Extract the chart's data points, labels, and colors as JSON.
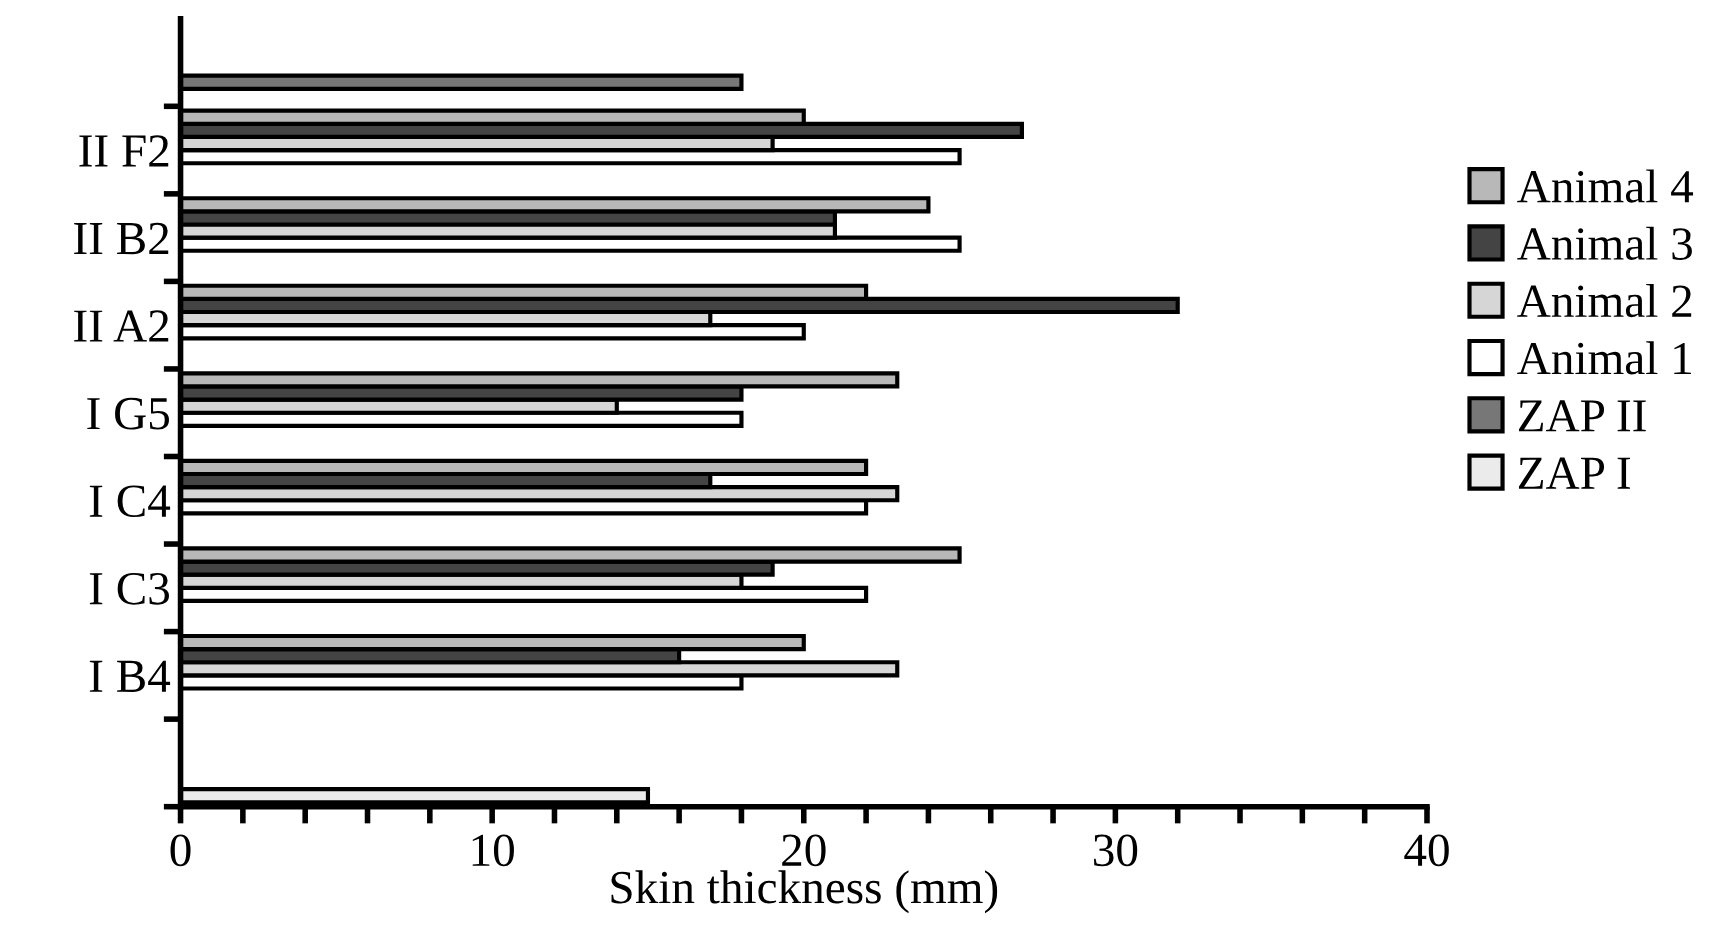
{
  "chart_data": {
    "type": "bar",
    "orientation": "horizontal",
    "xlabel": "Skin thickness (mm)",
    "categories": [
      null,
      "II F2",
      "II B2",
      "II A2",
      "I G5",
      "I C4",
      "I C3",
      "I B4",
      null
    ],
    "series": [
      {
        "name": "ZAP I",
        "color": "#ebebeb",
        "values": [
          null,
          null,
          null,
          null,
          null,
          null,
          null,
          null,
          15
        ]
      },
      {
        "name": "ZAP II",
        "color": "#777777",
        "values": [
          18,
          null,
          null,
          null,
          null,
          null,
          null,
          null,
          null
        ]
      },
      {
        "name": "Animal 1",
        "color": "#ffffff",
        "values": [
          null,
          25,
          25,
          20,
          18,
          22,
          22,
          18,
          null
        ]
      },
      {
        "name": "Animal 2",
        "color": "#d6d6d6",
        "values": [
          null,
          19,
          21,
          17,
          14,
          23,
          18,
          23,
          null
        ]
      },
      {
        "name": "Animal 3",
        "color": "#444444",
        "values": [
          null,
          27,
          21,
          32,
          18,
          17,
          19,
          16,
          null
        ]
      },
      {
        "name": "Animal 4",
        "color": "#b8b8b8",
        "values": [
          null,
          20,
          24,
          22,
          23,
          22,
          25,
          20,
          null
        ]
      }
    ],
    "xlim": [
      0,
      40
    ],
    "xticks": [
      0,
      {
        "value": 2,
        "label": null
      },
      {
        "value": 4,
        "label": null
      },
      {
        "value": 6,
        "label": null
      },
      {
        "value": 8,
        "label": null
      },
      10,
      {
        "value": 12,
        "label": null
      },
      {
        "value": 14,
        "label": null
      },
      {
        "value": 16,
        "label": null
      },
      {
        "value": 18,
        "label": null
      },
      20,
      {
        "value": 22,
        "label": null
      },
      {
        "value": 24,
        "label": null
      },
      {
        "value": 26,
        "label": null
      },
      {
        "value": 28,
        "label": null
      },
      30,
      {
        "value": 32,
        "label": null
      },
      {
        "value": 34,
        "label": null
      },
      {
        "value": 36,
        "label": null
      },
      {
        "value": 38,
        "label": null
      },
      40
    ],
    "legend": "right",
    "grid": false
  }
}
